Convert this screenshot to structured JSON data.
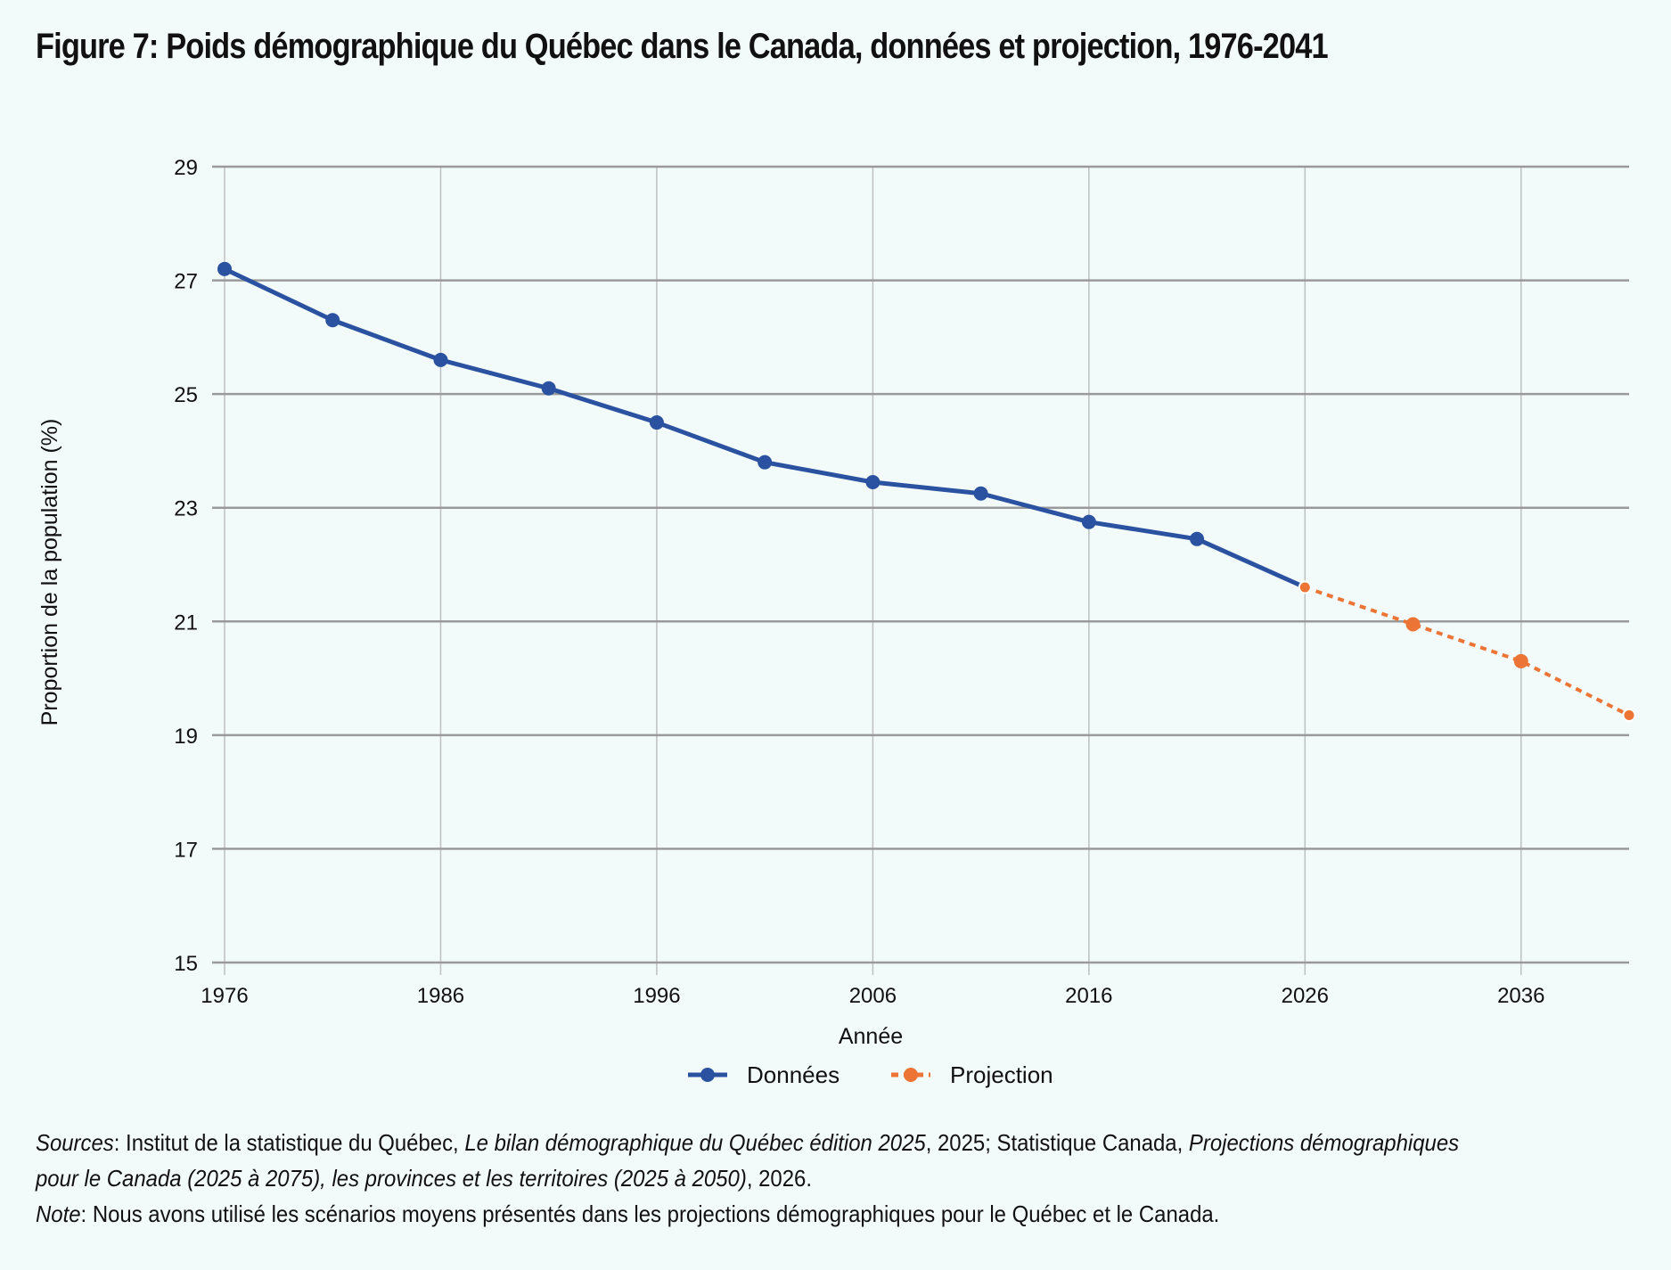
{
  "title": "Figure 7: Poids démographique du Québec dans le Canada, données et projection, 1976-2041",
  "footer": {
    "sources_label": "Sources",
    "sources_sep1": ": Institut de la statistique du Québec, ",
    "sources_ital1": "Le bilan démographique du Québec édition 2025",
    "sources_sep2": ", 2025; Statistique Canada, ",
    "sources_ital2a": "Projections démographiques",
    "sources_ital2b": "pour le Canada (2025 à 2075), les provinces et les territoires (2025 à 2050)",
    "sources_end": ", 2026.",
    "note_label": "Note",
    "note_text": ": Nous avons utilisé les scénarios moyens présentés dans les projections démographiques pour le Québec et le Canada."
  },
  "colors": {
    "donnees": "#2a52a0",
    "projection": "#ec7535",
    "grid": "#9a9a9a",
    "background": "#f3fbfa"
  },
  "chart_data": {
    "type": "line",
    "title": "Figure 7: Poids démographique du Québec dans le Canada, données et projection, 1976-2041",
    "xlabel": "Année",
    "ylabel": "Proportion de la population (%)",
    "xlim": [
      1976,
      2041
    ],
    "ylim": [
      15,
      29
    ],
    "xticks": [
      1976,
      1986,
      1996,
      2006,
      2016,
      2026,
      2036
    ],
    "yticks": [
      15,
      17,
      19,
      21,
      23,
      25,
      27,
      29
    ],
    "grid": true,
    "legend_position": "bottom",
    "series": [
      {
        "name": "Données",
        "style": "solid",
        "x": [
          1976,
          1981,
          1986,
          1991,
          1996,
          2001,
          2006,
          2011,
          2016,
          2021,
          2026
        ],
        "y": [
          27.2,
          26.3,
          25.6,
          25.1,
          24.5,
          23.8,
          23.45,
          23.25,
          22.75,
          22.45,
          21.6
        ]
      },
      {
        "name": "Projection",
        "style": "dashed",
        "x": [
          2026,
          2031,
          2036,
          2041
        ],
        "y": [
          21.6,
          20.95,
          20.3,
          19.35
        ]
      }
    ]
  }
}
